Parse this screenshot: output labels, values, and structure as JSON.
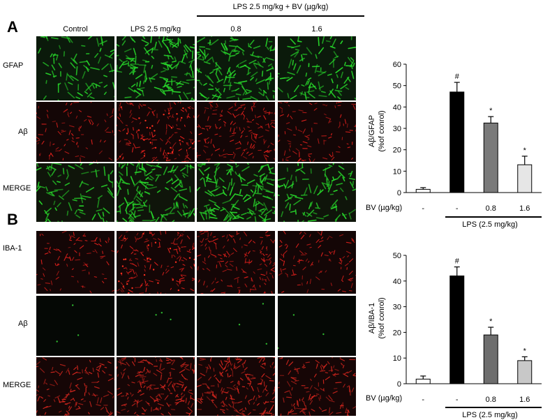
{
  "panel_labels": {
    "a": "A",
    "b": "B"
  },
  "header": {
    "treatment_group_label": "LPS 2.5 mg/kg + BV (µg/kg)",
    "columns": [
      "Control",
      "LPS 2.5 mg/kg",
      "0.8",
      "1.6"
    ]
  },
  "panel_a": {
    "row_labels": [
      "GFAP",
      "Aβ",
      "MERGE"
    ],
    "row_kinds": [
      "green",
      "red",
      "merge-green"
    ],
    "chart": {
      "ylabel_line1": "Aβ/GFAP",
      "ylabel_line2": "(%of conrol)",
      "bv_label": "BV (µg/kg)",
      "lps_label": "LPS (2.5 mg/kg)"
    }
  },
  "panel_b": {
    "row_labels": [
      "IBA-1",
      "Aβ",
      "MERGE"
    ],
    "row_kinds": [
      "red",
      "green-dim",
      "merge-red"
    ],
    "chart": {
      "ylabel_line1": "Aβ/IBA-1",
      "ylabel_line2": "(%of conrol)",
      "bv_label": "BV (µg/kg)",
      "lps_label": "LPS (2.5 mg/kg)"
    }
  },
  "chart_data": [
    {
      "type": "bar",
      "ylabel": "Aβ/GFAP (%of conrol)",
      "categories": [
        "-",
        "-",
        "0.8",
        "1.6"
      ],
      "values": [
        1.5,
        47,
        32.5,
        13
      ],
      "errors": [
        0.8,
        4.5,
        3,
        4
      ],
      "annotations": [
        "",
        "#",
        "*",
        "*"
      ],
      "bar_colors": [
        "#ffffff",
        "#000000",
        "#7a7a7a",
        "#e6e6e6"
      ],
      "ylim": [
        0,
        60
      ],
      "yticks": [
        0,
        10,
        20,
        30,
        40,
        50,
        60
      ]
    },
    {
      "type": "bar",
      "ylabel": "Aβ/IBA-1 (%of conrol)",
      "categories": [
        "-",
        "-",
        "0.8",
        "1.6"
      ],
      "values": [
        1.8,
        42,
        19,
        9
      ],
      "errors": [
        1.2,
        3.5,
        3,
        1.5
      ],
      "annotations": [
        "",
        "#",
        "*",
        "*"
      ],
      "bar_colors": [
        "#ffffff",
        "#000000",
        "#6e6e6e",
        "#c8c8c8"
      ],
      "ylim": [
        0,
        50
      ],
      "yticks": [
        0,
        10,
        20,
        30,
        40,
        50
      ]
    }
  ]
}
